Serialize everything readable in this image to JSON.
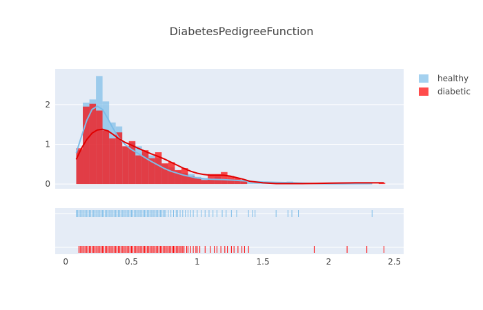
{
  "chart_data": {
    "type": "histogram",
    "title": "DiabetesPedigreeFunction",
    "xlabel": "",
    "ylabel": "",
    "xlim": [
      -0.08,
      2.57
    ],
    "ylim": [
      -0.12,
      2.9
    ],
    "x_ticks": [
      0,
      0.5,
      1,
      1.5,
      2,
      2.5
    ],
    "x_tick_labels": [
      "0",
      "0.5",
      "1",
      "1.5",
      "2",
      "2.5"
    ],
    "y_ticks": [
      0,
      1,
      2
    ],
    "y_tick_labels": [
      "0",
      "1",
      "2"
    ],
    "grid": true,
    "legend_position": "top-right",
    "bin_width": 0.05,
    "series": [
      {
        "name": "healthy",
        "color": "#7ebde8",
        "bins": [
          [
            0.08,
            0.85
          ],
          [
            0.13,
            2.05
          ],
          [
            0.18,
            2.13
          ],
          [
            0.23,
            2.72
          ],
          [
            0.28,
            2.08
          ],
          [
            0.33,
            1.55
          ],
          [
            0.38,
            1.45
          ],
          [
            0.43,
            0.95
          ],
          [
            0.48,
            1.05
          ],
          [
            0.53,
            0.95
          ],
          [
            0.58,
            0.8
          ],
          [
            0.63,
            0.72
          ],
          [
            0.68,
            0.65
          ],
          [
            0.73,
            0.5
          ],
          [
            0.78,
            0.42
          ],
          [
            0.83,
            0.33
          ],
          [
            0.88,
            0.28
          ],
          [
            0.93,
            0.25
          ],
          [
            0.98,
            0.18
          ],
          [
            1.03,
            0.15
          ],
          [
            1.08,
            0.13
          ],
          [
            1.13,
            0.18
          ],
          [
            1.18,
            0.13
          ],
          [
            1.23,
            0.1
          ],
          [
            1.28,
            0.08
          ],
          [
            1.33,
            0.08
          ],
          [
            1.38,
            0.06
          ],
          [
            1.43,
            0.05
          ],
          [
            1.48,
            0.04
          ],
          [
            1.53,
            0.04
          ],
          [
            1.58,
            0.03
          ],
          [
            1.63,
            0.04
          ],
          [
            1.68,
            0.06
          ],
          [
            1.73,
            0.03
          ],
          [
            1.78,
            0.02
          ],
          [
            1.83,
            0.02
          ],
          [
            2.28,
            0.02
          ]
        ],
        "kde": [
          [
            0.08,
            0.78
          ],
          [
            0.12,
            1.2
          ],
          [
            0.16,
            1.6
          ],
          [
            0.2,
            1.88
          ],
          [
            0.24,
            1.96
          ],
          [
            0.28,
            1.88
          ],
          [
            0.32,
            1.65
          ],
          [
            0.36,
            1.4
          ],
          [
            0.4,
            1.18
          ],
          [
            0.45,
            1.0
          ],
          [
            0.5,
            0.87
          ],
          [
            0.55,
            0.77
          ],
          [
            0.6,
            0.67
          ],
          [
            0.65,
            0.57
          ],
          [
            0.7,
            0.48
          ],
          [
            0.75,
            0.39
          ],
          [
            0.8,
            0.32
          ],
          [
            0.9,
            0.22
          ],
          [
            1.0,
            0.15
          ],
          [
            1.1,
            0.12
          ],
          [
            1.2,
            0.11
          ],
          [
            1.3,
            0.09
          ],
          [
            1.4,
            0.07
          ],
          [
            1.5,
            0.05
          ],
          [
            1.6,
            0.04
          ],
          [
            1.7,
            0.035
          ],
          [
            1.8,
            0.02
          ],
          [
            1.9,
            0.01
          ],
          [
            2.0,
            0.005
          ],
          [
            2.1,
            0.005
          ],
          [
            2.2,
            0.008
          ],
          [
            2.33,
            0.01
          ]
        ],
        "rug": [
          0.08,
          0.09,
          0.1,
          0.11,
          0.12,
          0.13,
          0.14,
          0.15,
          0.16,
          0.17,
          0.18,
          0.19,
          0.2,
          0.21,
          0.22,
          0.23,
          0.24,
          0.25,
          0.26,
          0.27,
          0.28,
          0.29,
          0.3,
          0.31,
          0.32,
          0.33,
          0.34,
          0.35,
          0.36,
          0.37,
          0.38,
          0.39,
          0.4,
          0.41,
          0.42,
          0.43,
          0.44,
          0.45,
          0.46,
          0.47,
          0.48,
          0.49,
          0.5,
          0.51,
          0.52,
          0.53,
          0.54,
          0.55,
          0.56,
          0.57,
          0.58,
          0.59,
          0.6,
          0.61,
          0.62,
          0.63,
          0.64,
          0.65,
          0.66,
          0.67,
          0.68,
          0.69,
          0.7,
          0.71,
          0.72,
          0.73,
          0.74,
          0.75,
          0.76,
          0.78,
          0.8,
          0.82,
          0.84,
          0.85,
          0.87,
          0.89,
          0.91,
          0.93,
          0.95,
          0.97,
          1.0,
          1.03,
          1.06,
          1.09,
          1.12,
          1.15,
          1.19,
          1.22,
          1.26,
          1.3,
          1.39,
          1.42,
          1.44,
          1.6,
          1.69,
          1.72,
          1.77,
          2.33
        ]
      },
      {
        "name": "diabetic",
        "color": "#ff0000",
        "bins": [
          [
            0.08,
            0.9
          ],
          [
            0.13,
            1.95
          ],
          [
            0.18,
            2.02
          ],
          [
            0.23,
            1.85
          ],
          [
            0.28,
            1.35
          ],
          [
            0.33,
            1.15
          ],
          [
            0.38,
            1.3
          ],
          [
            0.43,
            0.95
          ],
          [
            0.48,
            1.08
          ],
          [
            0.53,
            0.72
          ],
          [
            0.58,
            0.85
          ],
          [
            0.63,
            0.65
          ],
          [
            0.68,
            0.8
          ],
          [
            0.73,
            0.52
          ],
          [
            0.78,
            0.55
          ],
          [
            0.83,
            0.35
          ],
          [
            0.88,
            0.4
          ],
          [
            0.93,
            0.2
          ],
          [
            0.98,
            0.14
          ],
          [
            1.03,
            0.1
          ],
          [
            1.08,
            0.25
          ],
          [
            1.13,
            0.25
          ],
          [
            1.18,
            0.3
          ],
          [
            1.23,
            0.2
          ],
          [
            1.28,
            0.15
          ],
          [
            1.33,
            0.1
          ],
          [
            2.28,
            0.04
          ],
          [
            2.38,
            0.03
          ]
        ],
        "kde": [
          [
            0.08,
            0.62
          ],
          [
            0.12,
            0.9
          ],
          [
            0.16,
            1.12
          ],
          [
            0.2,
            1.28
          ],
          [
            0.24,
            1.36
          ],
          [
            0.28,
            1.38
          ],
          [
            0.32,
            1.34
          ],
          [
            0.36,
            1.25
          ],
          [
            0.4,
            1.15
          ],
          [
            0.45,
            1.05
          ],
          [
            0.5,
            0.98
          ],
          [
            0.55,
            0.9
          ],
          [
            0.6,
            0.83
          ],
          [
            0.65,
            0.76
          ],
          [
            0.7,
            0.7
          ],
          [
            0.75,
            0.63
          ],
          [
            0.8,
            0.55
          ],
          [
            0.85,
            0.47
          ],
          [
            0.9,
            0.39
          ],
          [
            0.95,
            0.32
          ],
          [
            1.0,
            0.27
          ],
          [
            1.05,
            0.24
          ],
          [
            1.1,
            0.22
          ],
          [
            1.15,
            0.22
          ],
          [
            1.2,
            0.22
          ],
          [
            1.25,
            0.2
          ],
          [
            1.3,
            0.16
          ],
          [
            1.35,
            0.12
          ],
          [
            1.4,
            0.07
          ],
          [
            1.5,
            0.03
          ],
          [
            1.6,
            0.01
          ],
          [
            1.7,
            0.01
          ],
          [
            1.8,
            0.01
          ],
          [
            1.9,
            0.015
          ],
          [
            2.0,
            0.02
          ],
          [
            2.1,
            0.025
          ],
          [
            2.2,
            0.03
          ],
          [
            2.3,
            0.03
          ],
          [
            2.42,
            0.03
          ]
        ],
        "rug": [
          0.1,
          0.11,
          0.12,
          0.13,
          0.14,
          0.15,
          0.16,
          0.17,
          0.18,
          0.19,
          0.2,
          0.21,
          0.22,
          0.23,
          0.24,
          0.25,
          0.26,
          0.27,
          0.28,
          0.29,
          0.3,
          0.31,
          0.32,
          0.33,
          0.34,
          0.35,
          0.36,
          0.37,
          0.38,
          0.39,
          0.4,
          0.41,
          0.42,
          0.43,
          0.44,
          0.45,
          0.46,
          0.47,
          0.48,
          0.49,
          0.5,
          0.51,
          0.52,
          0.53,
          0.54,
          0.55,
          0.56,
          0.57,
          0.58,
          0.59,
          0.6,
          0.61,
          0.62,
          0.63,
          0.64,
          0.65,
          0.66,
          0.67,
          0.68,
          0.69,
          0.7,
          0.71,
          0.72,
          0.73,
          0.74,
          0.75,
          0.76,
          0.77,
          0.78,
          0.79,
          0.8,
          0.81,
          0.82,
          0.83,
          0.84,
          0.85,
          0.86,
          0.87,
          0.88,
          0.89,
          0.9,
          0.92,
          0.93,
          0.95,
          0.97,
          0.99,
          1.0,
          1.02,
          1.06,
          1.1,
          1.13,
          1.15,
          1.18,
          1.21,
          1.23,
          1.26,
          1.28,
          1.31,
          1.34,
          1.36,
          1.39,
          1.89,
          2.14,
          2.29,
          2.42
        ]
      }
    ]
  }
}
